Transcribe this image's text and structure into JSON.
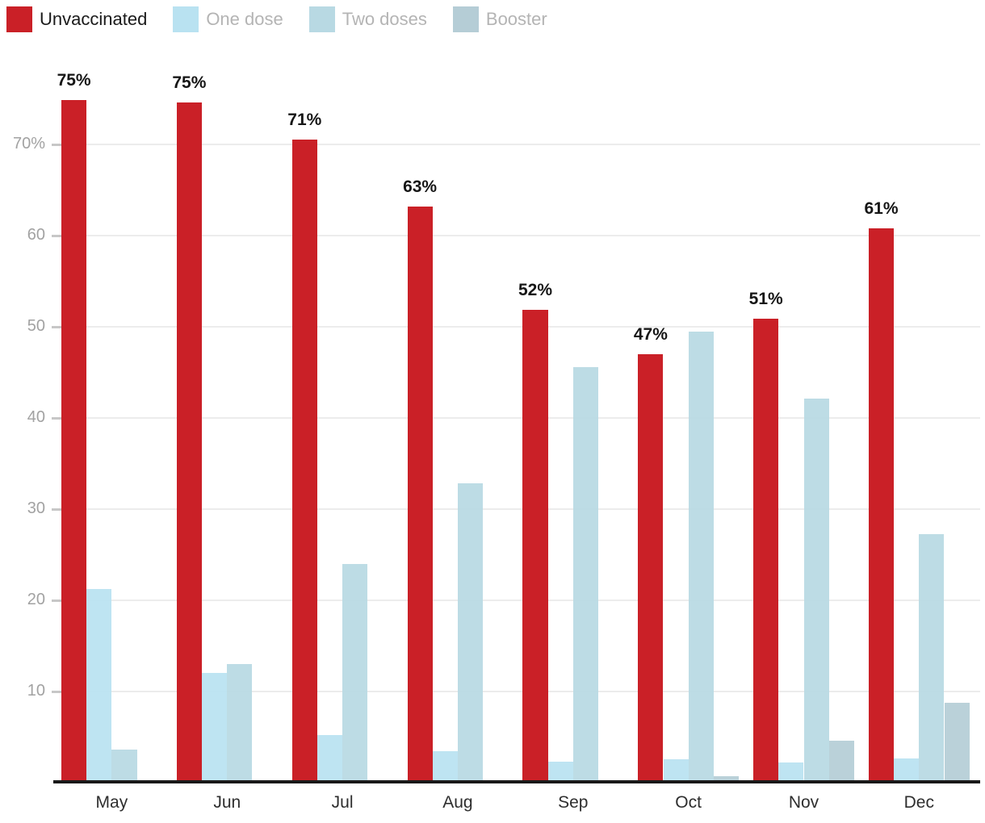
{
  "legend": {
    "items": [
      {
        "label": "Unvaccinated",
        "color": "#ca2027",
        "text_color": "#1a1a1a"
      },
      {
        "label": "One dose",
        "color": "#b9e2f1",
        "text_color": "#b4b4b4"
      },
      {
        "label": "Two doses",
        "color": "#b8d9e3",
        "text_color": "#b4b4b4"
      },
      {
        "label": "Booster",
        "color": "#b5cdd6",
        "text_color": "#b4b4b4"
      }
    ]
  },
  "chart_data": {
    "type": "bar",
    "title": "",
    "categories": [
      "May",
      "Jun",
      "Jul",
      "Aug",
      "Sep",
      "Oct",
      "Nov",
      "Dec"
    ],
    "series": [
      {
        "name": "Unvaccinated",
        "color": "#ca2027",
        "values": [
          74.9,
          74.6,
          70.5,
          63.2,
          51.9,
          47.0,
          50.9,
          60.8
        ],
        "labels": [
          "75%",
          "75%",
          "71%",
          "63%",
          "52%",
          "47%",
          "51%",
          "61%"
        ]
      },
      {
        "name": "One dose",
        "color": "#b9e2f1",
        "values": [
          21.2,
          12.0,
          5.2,
          3.5,
          2.3,
          2.6,
          2.2,
          2.7
        ],
        "labels": []
      },
      {
        "name": "Two doses",
        "color": "#b8d9e3",
        "values": [
          3.6,
          13.0,
          24.0,
          32.8,
          45.6,
          49.5,
          42.1,
          27.3
        ],
        "labels": []
      },
      {
        "name": "Booster",
        "color": "#b5cdd6",
        "values": [
          0,
          0,
          0,
          0,
          0,
          0.7,
          4.6,
          8.8
        ],
        "labels": []
      }
    ],
    "ylim": [
      0,
      79
    ],
    "yticks": [
      {
        "value": 70,
        "label": "70%"
      },
      {
        "value": 60,
        "label": "60"
      },
      {
        "value": 50,
        "label": "50"
      },
      {
        "value": 40,
        "label": "40"
      },
      {
        "value": 30,
        "label": "30"
      },
      {
        "value": 20,
        "label": "20"
      },
      {
        "value": 10,
        "label": "10"
      }
    ],
    "grid": "horizontal",
    "legend_position": "top-left"
  },
  "colors": {
    "axis": "#191919",
    "gridline": "#ececec",
    "tick": "#c7c7c7",
    "ytick_text": "#a2a2a2",
    "month_text": "#2e2e2e",
    "value_label_text": "#161616",
    "background": "#ffffff"
  }
}
